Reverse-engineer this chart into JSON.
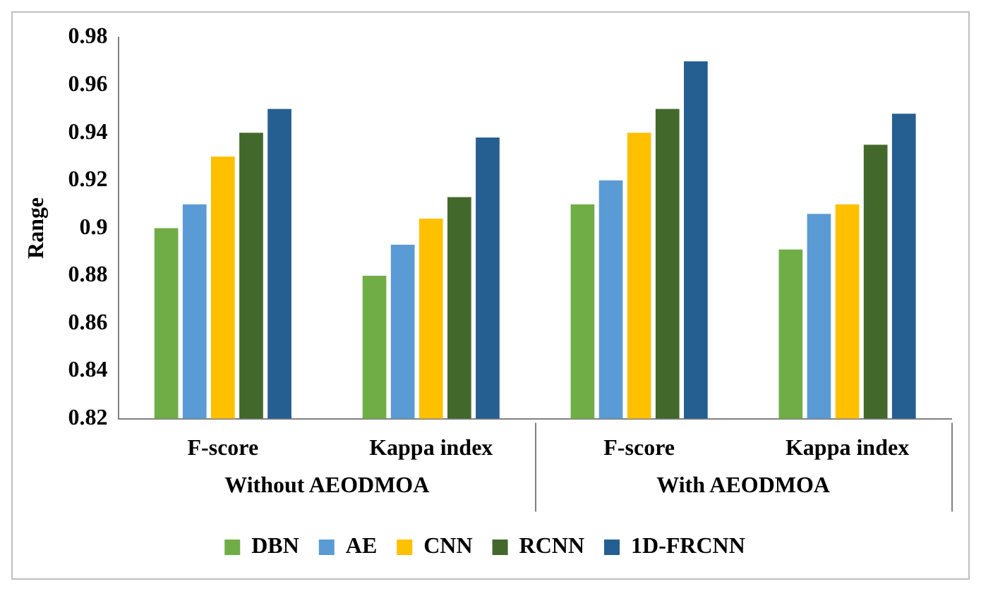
{
  "chart_data": {
    "type": "bar",
    "ylabel": "Range",
    "categories": [
      "F-score",
      "Kappa index",
      "F-score",
      "Kappa index"
    ],
    "annotations": [
      "Without AEODMOA",
      "With AEODMOA"
    ],
    "series": [
      {
        "name": "DBN",
        "color": "#70ad47",
        "values": [
          0.9,
          0.88,
          0.91,
          0.891
        ]
      },
      {
        "name": "AE",
        "color": "#5b9bd5",
        "values": [
          0.91,
          0.893,
          0.92,
          0.906
        ]
      },
      {
        "name": "CNN",
        "color": "#ffc000",
        "values": [
          0.93,
          0.904,
          0.94,
          0.91
        ]
      },
      {
        "name": "RCNN",
        "color": "#43682b",
        "values": [
          0.94,
          0.913,
          0.95,
          0.935
        ]
      },
      {
        "name": "1D-FRCNN",
        "color": "#255e91",
        "values": [
          0.95,
          0.938,
          0.97,
          0.948
        ]
      }
    ],
    "ylim": [
      0.82,
      0.98
    ],
    "yticks": [
      0.82,
      0.84,
      0.86,
      0.88,
      0.9,
      0.92,
      0.94,
      0.96,
      0.98
    ],
    "grid": false,
    "legend": "bottom"
  }
}
